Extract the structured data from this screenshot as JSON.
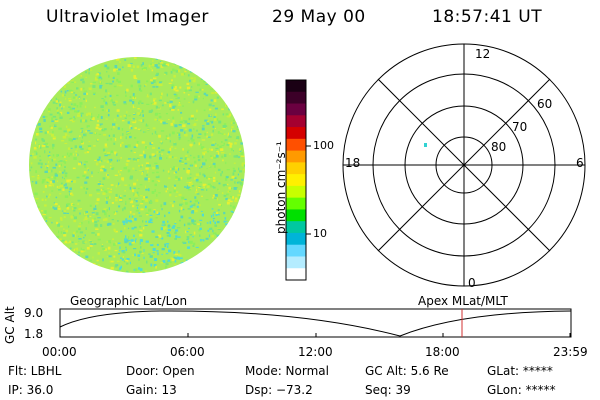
{
  "header": {
    "title": "Ultraviolet Imager",
    "date": "29 May 00",
    "time": "18:57:41 UT"
  },
  "colorbar": {
    "unit": "photon cm⁻²s⁻¹",
    "ticks": [
      {
        "label": "100",
        "value": 100
      },
      {
        "label": "10",
        "value": 10
      }
    ],
    "colors": [
      "#1a0014",
      "#3c0028",
      "#6a0040",
      "#a40030",
      "#d40000",
      "#ff5000",
      "#ff9a00",
      "#ffd000",
      "#fff000",
      "#c8ff00",
      "#64ff00",
      "#00e000",
      "#00c8a0",
      "#00b4d8",
      "#64d8ff",
      "#b4ecff",
      "#ffffff"
    ]
  },
  "image_disk": {
    "base_color": "#a8ec5a",
    "speckle_colors": [
      "#78e67a",
      "#c8f03c",
      "#5ad8b4",
      "#e6f032",
      "#8cf05a"
    ],
    "lower_edge_color": "#50dcd2"
  },
  "polar_plot": {
    "top_label": "12",
    "left_label": "18",
    "right_label": "6",
    "bottom_label": "0",
    "lat_labels": [
      "60",
      "70",
      "80"
    ],
    "spot_color": "#32d2d2"
  },
  "timeline": {
    "ylabel": "GC Alt",
    "ymax": "9.0",
    "ymin": "1.8",
    "left_title": "Geographic Lat/Lon",
    "right_title": "Apex MLat/MLT",
    "marker_time": "18:57:41",
    "xticks": [
      "00:00",
      "06:00",
      "12:00",
      "18:00",
      "23:59"
    ]
  },
  "info": {
    "filter": "Flt: LBHL",
    "ip": "IP: 36.0",
    "door": "Door: Open",
    "gain": "Gain: 13",
    "mode": "Mode: Normal",
    "dsp": "Dsp:  −73.2",
    "gc_alt": "GC Alt: 5.6 Re",
    "seq": "Seq: 39",
    "glat": "GLat: *****",
    "glon": "GLon: *****"
  }
}
